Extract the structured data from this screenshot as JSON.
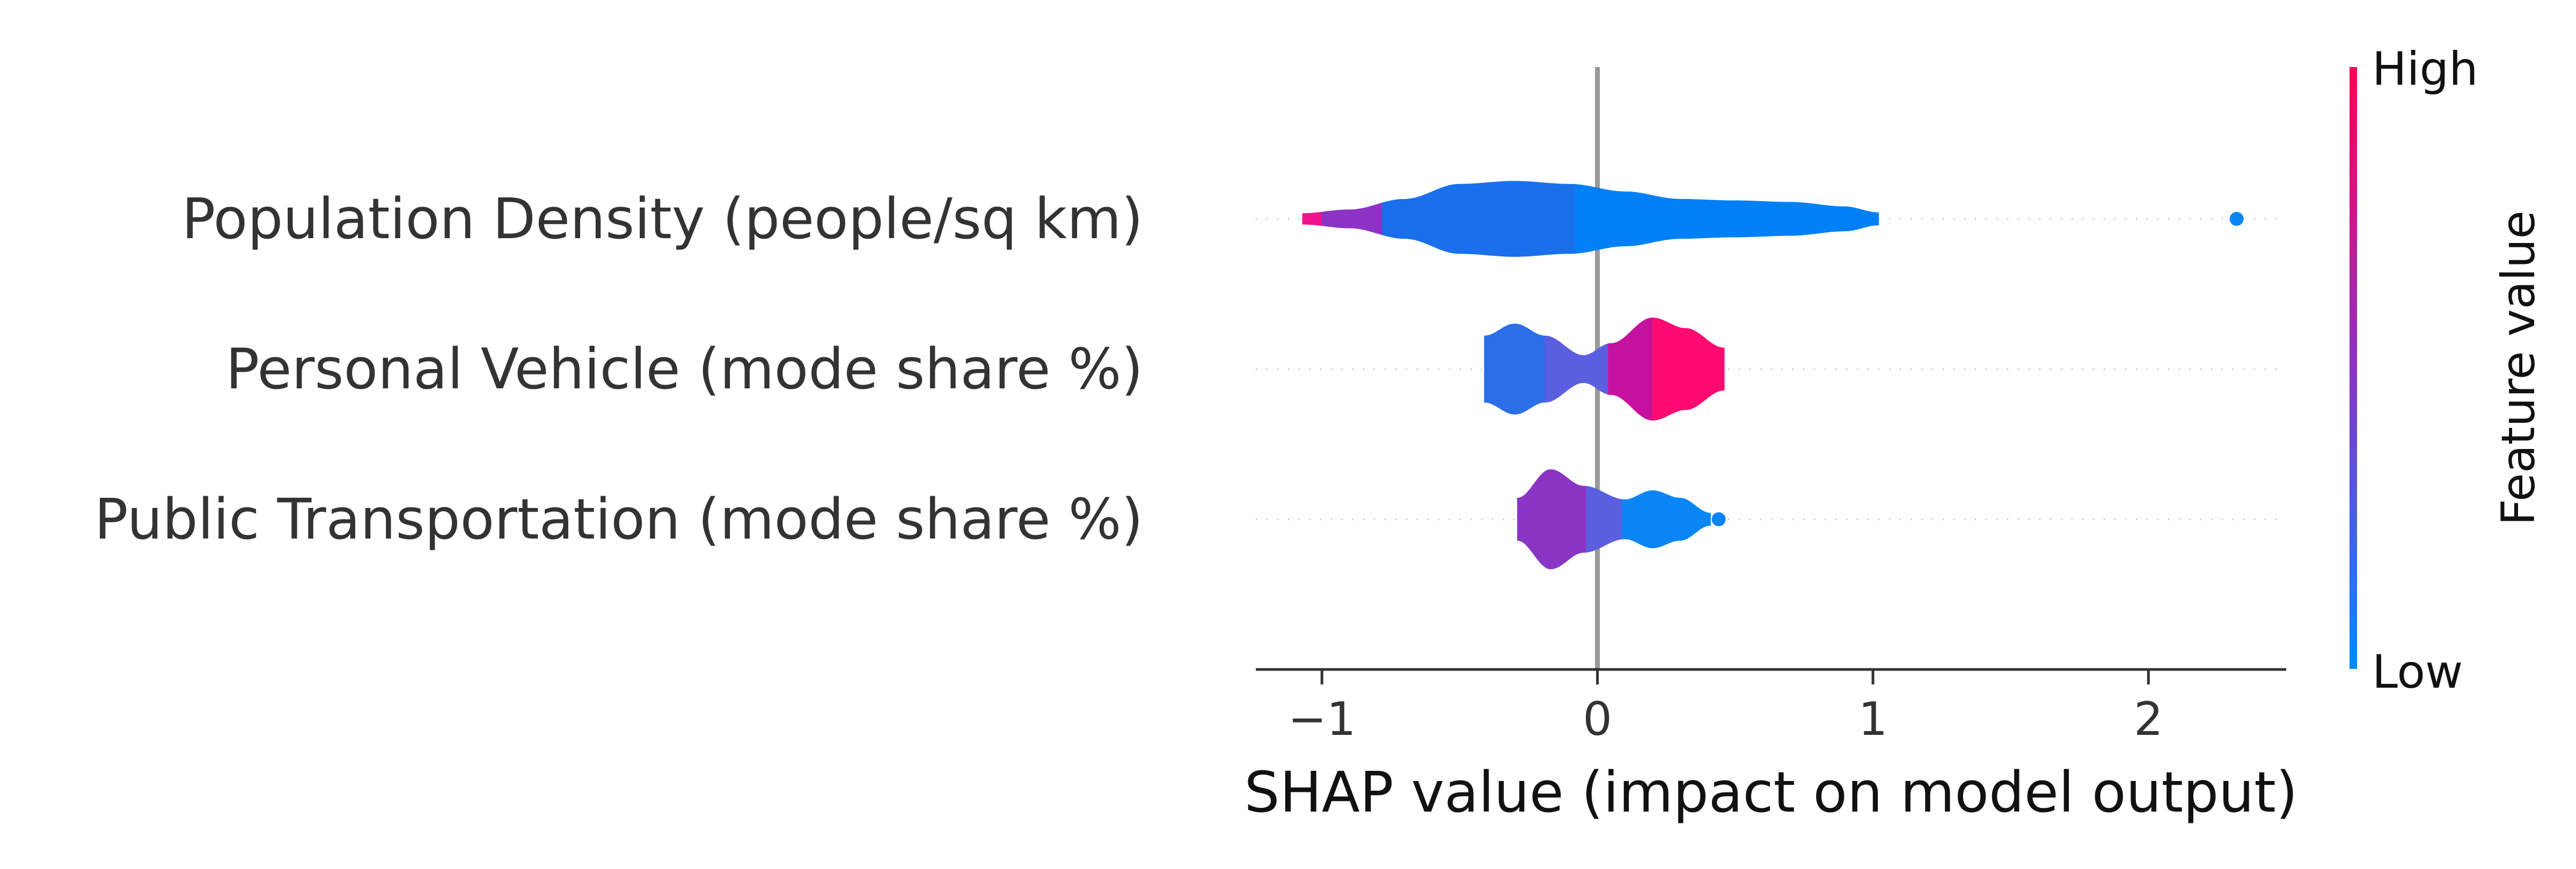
{
  "chart_data": {
    "type": "violin",
    "title": "",
    "xlabel": "SHAP value (impact on model output)",
    "xlim": [
      -1.24,
      2.5
    ],
    "xticks": [
      -1,
      0,
      1,
      2
    ],
    "xtick_labels": [
      "−1",
      "0",
      "1",
      "2"
    ],
    "zero_line": true,
    "colorbar": {
      "title": "Feature value",
      "high_label": "High",
      "low_label": "Low",
      "high_color": "#ff0052",
      "low_color": "#008bfb"
    },
    "features": [
      {
        "name": "Population Density (people/sq km)",
        "profile": [
          [
            -1.07,
            0.035
          ],
          [
            -0.9,
            0.06
          ],
          [
            -0.7,
            0.13
          ],
          [
            -0.5,
            0.23
          ],
          [
            -0.3,
            0.25
          ],
          [
            -0.1,
            0.23
          ],
          [
            0.1,
            0.18
          ],
          [
            0.3,
            0.13
          ],
          [
            0.5,
            0.12
          ],
          [
            0.7,
            0.11
          ],
          [
            0.9,
            0.08
          ],
          [
            1.02,
            0.04
          ]
        ],
        "segments": [
          {
            "from": -1.07,
            "to": -1.0,
            "color": "#f0148a"
          },
          {
            "from": -1.0,
            "to": -0.78,
            "color": "#8c33c6"
          },
          {
            "from": -0.78,
            "to": -0.08,
            "color": "#1970ea"
          },
          {
            "from": -0.08,
            "to": 1.02,
            "color": "#0080f7"
          }
        ],
        "outliers": [
          {
            "x": 2.32,
            "color": "#0a86f4"
          }
        ]
      },
      {
        "name": "Personal Vehicle (mode share %)",
        "profile": [
          [
            -0.41,
            0.22
          ],
          [
            -0.3,
            0.3
          ],
          [
            -0.19,
            0.22
          ],
          [
            -0.05,
            0.09
          ],
          [
            0.05,
            0.17
          ],
          [
            0.2,
            0.34
          ],
          [
            0.32,
            0.27
          ],
          [
            0.46,
            0.14
          ]
        ],
        "segments": [
          {
            "from": -0.41,
            "to": -0.19,
            "color": "#2a6ee8"
          },
          {
            "from": -0.19,
            "to": 0.04,
            "color": "#5a5fe0"
          },
          {
            "from": 0.04,
            "to": 0.2,
            "color": "#c4129f"
          },
          {
            "from": 0.2,
            "to": 0.46,
            "color": "#ff0a70"
          }
        ],
        "outliers": []
      },
      {
        "name": "Public Transportation (mode share %)",
        "profile": [
          [
            -0.29,
            0.14
          ],
          [
            -0.17,
            0.33
          ],
          [
            -0.05,
            0.22
          ],
          [
            0.1,
            0.13
          ],
          [
            0.2,
            0.19
          ],
          [
            0.3,
            0.14
          ],
          [
            0.41,
            0.04
          ]
        ],
        "segments": [
          {
            "from": -0.29,
            "to": -0.04,
            "color": "#8a35c4"
          },
          {
            "from": -0.04,
            "to": 0.09,
            "color": "#5a5fe0"
          },
          {
            "from": 0.09,
            "to": 0.41,
            "color": "#0a86f4"
          }
        ],
        "outliers": [
          {
            "x": 0.44,
            "color": "#0a86f4"
          }
        ]
      }
    ]
  }
}
